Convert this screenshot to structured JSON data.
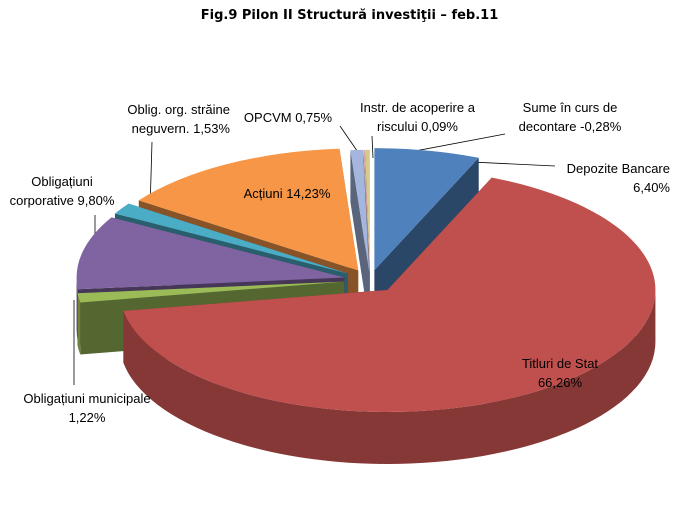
{
  "chart_data": {
    "type": "pie3d",
    "title": "Fig.9 Pilon II Structură investiţii – feb.11",
    "categories": [
      "Depozite Bancare",
      "Titluri de Stat",
      "Obligațiuni municipale",
      "Obligațiuni corporative",
      "Oblig. org. străine neguvern.",
      "Acțiuni",
      "OPCVM",
      "Instr. de acoperire a riscului",
      "Sume în curs de decontare"
    ],
    "values": [
      6.4,
      66.26,
      1.22,
      9.8,
      1.53,
      14.23,
      0.75,
      0.09,
      -0.28
    ],
    "value_labels": [
      "6,40%",
      "66,26%",
      "1,22%",
      "9,80%",
      "1,53%",
      "14,23%",
      "0,75%",
      "0,09%",
      "-0,28%"
    ],
    "colors": [
      "#4f81bd",
      "#c0504d",
      "#9bbb59",
      "#8064a2",
      "#4bacc6",
      "#f79646",
      "#a4b6dd",
      "#d6a9a7",
      "#d7c98a"
    ]
  }
}
